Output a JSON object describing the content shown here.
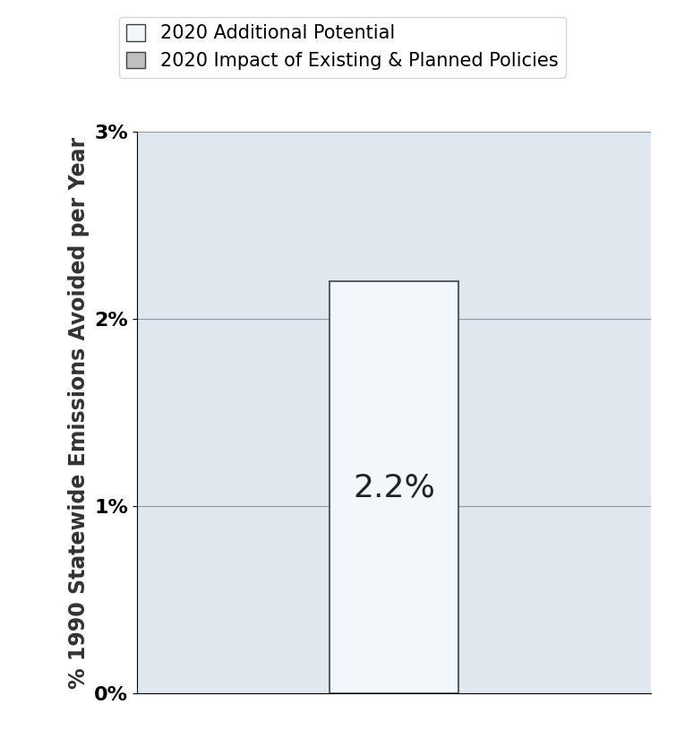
{
  "chart_data": {
    "type": "bar",
    "stacked": true,
    "categories": [
      null
    ],
    "y_label": "% 1990 Statewide Emissions Avoided per Year",
    "series": [
      {
        "name": "2020 Impact of Existing & Planned Policies",
        "color": "#bfbfbf",
        "values": [
          0
        ]
      },
      {
        "name": "2020 Additional Potential",
        "color": "#f2f7fb",
        "values": [
          2.2
        ],
        "value_labels": [
          "2.2%"
        ]
      }
    ],
    "ylim": [
      0,
      3
    ],
    "yticks": [
      {
        "value": 0,
        "label": "0%"
      },
      {
        "value": 1,
        "label": "1%"
      },
      {
        "value": 2,
        "label": "2%"
      },
      {
        "value": 3,
        "label": "3%"
      }
    ],
    "grid": true,
    "legend": "upper center",
    "data_labels": true,
    "tick_labels": "y"
  }
}
